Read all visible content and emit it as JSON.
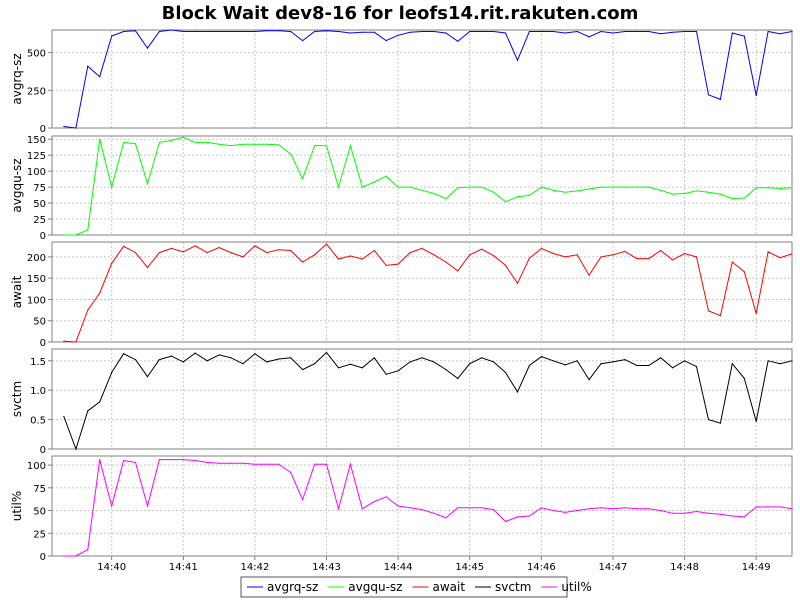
{
  "chart_data": {
    "type": "line",
    "title": "Block Wait dev8-16 for leofs14.rit.rakuten.com",
    "x": [
      "14:39:20",
      "14:39:30",
      "14:39:40",
      "14:39:50",
      "14:40:00",
      "14:40:10",
      "14:40:20",
      "14:40:30",
      "14:40:40",
      "14:40:50",
      "14:41:00",
      "14:41:10",
      "14:41:20",
      "14:41:30",
      "14:41:40",
      "14:41:50",
      "14:42:00",
      "14:42:10",
      "14:42:20",
      "14:42:30",
      "14:42:40",
      "14:42:50",
      "14:43:00",
      "14:43:10",
      "14:43:20",
      "14:43:30",
      "14:43:40",
      "14:43:50",
      "14:44:00",
      "14:44:10",
      "14:44:20",
      "14:44:30",
      "14:44:40",
      "14:44:50",
      "14:45:00",
      "14:45:10",
      "14:45:20",
      "14:45:30",
      "14:45:40",
      "14:45:50",
      "14:46:00",
      "14:46:10",
      "14:46:20",
      "14:46:30",
      "14:46:40",
      "14:46:50",
      "14:47:00",
      "14:47:10",
      "14:47:20",
      "14:47:30",
      "14:47:40",
      "14:47:50",
      "14:48:00",
      "14:48:10",
      "14:48:20",
      "14:48:30",
      "14:48:40",
      "14:48:50",
      "14:49:00",
      "14:49:10",
      "14:49:20",
      "14:49:30"
    ],
    "x_tick_labels": [
      "14:40",
      "14:41",
      "14:42",
      "14:43",
      "14:44",
      "14:45",
      "14:46",
      "14:47",
      "14:48",
      "14:49"
    ],
    "x_ticks": [
      "14:40:00",
      "14:41:00",
      "14:42:00",
      "14:43:00",
      "14:44:00",
      "14:45:00",
      "14:46:00",
      "14:47:00",
      "14:48:00",
      "14:49:00"
    ],
    "x_range": [
      "14:39:10",
      "14:49:30"
    ],
    "grid": true,
    "legend_position": "bottom-center",
    "panels": [
      {
        "name": "avgrq-sz",
        "ylabel": "avgrq-sz",
        "color": "#0000ff",
        "ylim": [
          0,
          650
        ],
        "yticks": [
          0,
          250,
          500
        ],
        "values": [
          10,
          0,
          410,
          340,
          610,
          640,
          645,
          530,
          640,
          650,
          640,
          640,
          640,
          640,
          640,
          640,
          640,
          645,
          645,
          640,
          580,
          640,
          645,
          640,
          630,
          635,
          635,
          580,
          615,
          635,
          640,
          640,
          630,
          575,
          640,
          640,
          640,
          630,
          450,
          640,
          640,
          640,
          630,
          640,
          605,
          640,
          630,
          640,
          640,
          640,
          625,
          635,
          640,
          640,
          220,
          190,
          630,
          610,
          215,
          640,
          625,
          640
        ]
      },
      {
        "name": "avgqu-sz",
        "ylabel": "avgqu-sz",
        "color": "#00ff00",
        "ylim": [
          0,
          155
        ],
        "yticks": [
          0,
          25,
          50,
          75,
          100,
          125,
          150
        ],
        "values": [
          0,
          0,
          8,
          150,
          75,
          145,
          143,
          80,
          145,
          148,
          153,
          145,
          145,
          142,
          140,
          142,
          142,
          142,
          141,
          127,
          88,
          140,
          140,
          75,
          140,
          75,
          83,
          92,
          75,
          75,
          70,
          65,
          57,
          74,
          75,
          75,
          67,
          52,
          60,
          62,
          75,
          70,
          67,
          69,
          72,
          75,
          75,
          75,
          75,
          75,
          70,
          64,
          65,
          69,
          67,
          64,
          57,
          58,
          74,
          74,
          73,
          74
        ]
      },
      {
        "name": "await",
        "ylabel": "await",
        "color": "#ff0000",
        "ylim": [
          0,
          235
        ],
        "yticks": [
          0,
          50,
          100,
          150,
          200
        ],
        "values": [
          2,
          0,
          75,
          115,
          185,
          225,
          210,
          175,
          210,
          220,
          212,
          226,
          210,
          222,
          210,
          200,
          226,
          210,
          217,
          215,
          188,
          205,
          230,
          195,
          202,
          195,
          215,
          180,
          183,
          210,
          220,
          205,
          188,
          167,
          205,
          218,
          203,
          180,
          138,
          197,
          220,
          208,
          200,
          205,
          157,
          200,
          205,
          213,
          196,
          196,
          215,
          193,
          208,
          200,
          73,
          62,
          188,
          165,
          67,
          212,
          198,
          207
        ]
      },
      {
        "name": "svctm",
        "ylabel": "svctm",
        "color": "#000000",
        "ylim": [
          0,
          1.7
        ],
        "yticks": [
          0,
          0.5,
          1.0,
          1.5
        ],
        "ytick_labels": [
          "0",
          "0.5",
          "1.0",
          "1.5"
        ],
        "values": [
          0.55,
          0,
          0.65,
          0.8,
          1.3,
          1.62,
          1.52,
          1.23,
          1.52,
          1.58,
          1.48,
          1.63,
          1.5,
          1.6,
          1.55,
          1.45,
          1.62,
          1.48,
          1.53,
          1.55,
          1.35,
          1.45,
          1.64,
          1.38,
          1.44,
          1.38,
          1.55,
          1.27,
          1.33,
          1.48,
          1.55,
          1.48,
          1.35,
          1.2,
          1.45,
          1.55,
          1.48,
          1.3,
          0.97,
          1.42,
          1.57,
          1.5,
          1.43,
          1.5,
          1.18,
          1.45,
          1.48,
          1.52,
          1.42,
          1.42,
          1.55,
          1.38,
          1.5,
          1.4,
          0.5,
          0.44,
          1.45,
          1.2,
          0.47,
          1.5,
          1.45,
          1.5
        ]
      },
      {
        "name": "util%",
        "ylabel": "util%",
        "color": "#ff00ff",
        "ylim": [
          0,
          110
        ],
        "yticks": [
          0,
          25,
          50,
          75,
          100
        ],
        "values": [
          0,
          0,
          7,
          106,
          55,
          105,
          103,
          55,
          106,
          106,
          106,
          105,
          103,
          102,
          102,
          102,
          101,
          101,
          101,
          92,
          62,
          101,
          101,
          52,
          101,
          52,
          60,
          65,
          55,
          53,
          51,
          47,
          42,
          53,
          53,
          53,
          51,
          38,
          43,
          44,
          53,
          50,
          48,
          50,
          52,
          53,
          52,
          53,
          52,
          52,
          50,
          47,
          47,
          49,
          47,
          46,
          44,
          43,
          54,
          54,
          54,
          52
        ]
      }
    ]
  }
}
